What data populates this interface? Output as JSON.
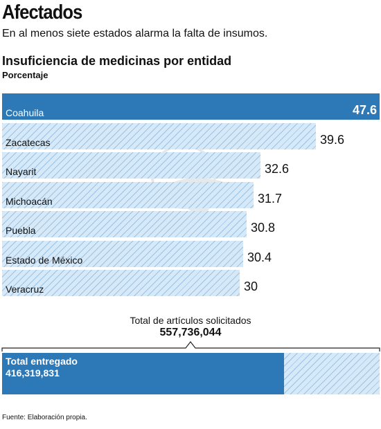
{
  "header": {
    "title": "Afectados",
    "subtitle": "En al menos siete estados alarma la falta de insumos."
  },
  "chart_data": {
    "type": "bar",
    "orientation": "horizontal",
    "title": "Insuficiencia de medicinas por entidad",
    "unit": "Porcentaje",
    "categories": [
      "Coahuila",
      "Zacatecas",
      "Nayarit",
      "Michoacán",
      "Puebla",
      "Estado de México",
      "Veracruz"
    ],
    "values": [
      47.6,
      39.6,
      32.6,
      31.7,
      30.8,
      30.4,
      30
    ],
    "value_labels": [
      "47.6",
      "39.6",
      "32.6",
      "31.7",
      "30.8",
      "30.4",
      "30"
    ],
    "highlight_index": 0,
    "xlim": [
      0,
      47.6
    ],
    "colors": {
      "highlight": "#2d79b7",
      "bar": "#d6e9f8",
      "hatch": "#6ea0cd"
    }
  },
  "totals": {
    "requested_label": "Total de artículos solicitados",
    "requested_value": "557,736,044",
    "requested_number": 557736044,
    "delivered_label": "Total entregado",
    "delivered_value": "416,319,831",
    "delivered_number": 416319831
  },
  "footer": {
    "source": "Fuente: Elaboración propia."
  }
}
